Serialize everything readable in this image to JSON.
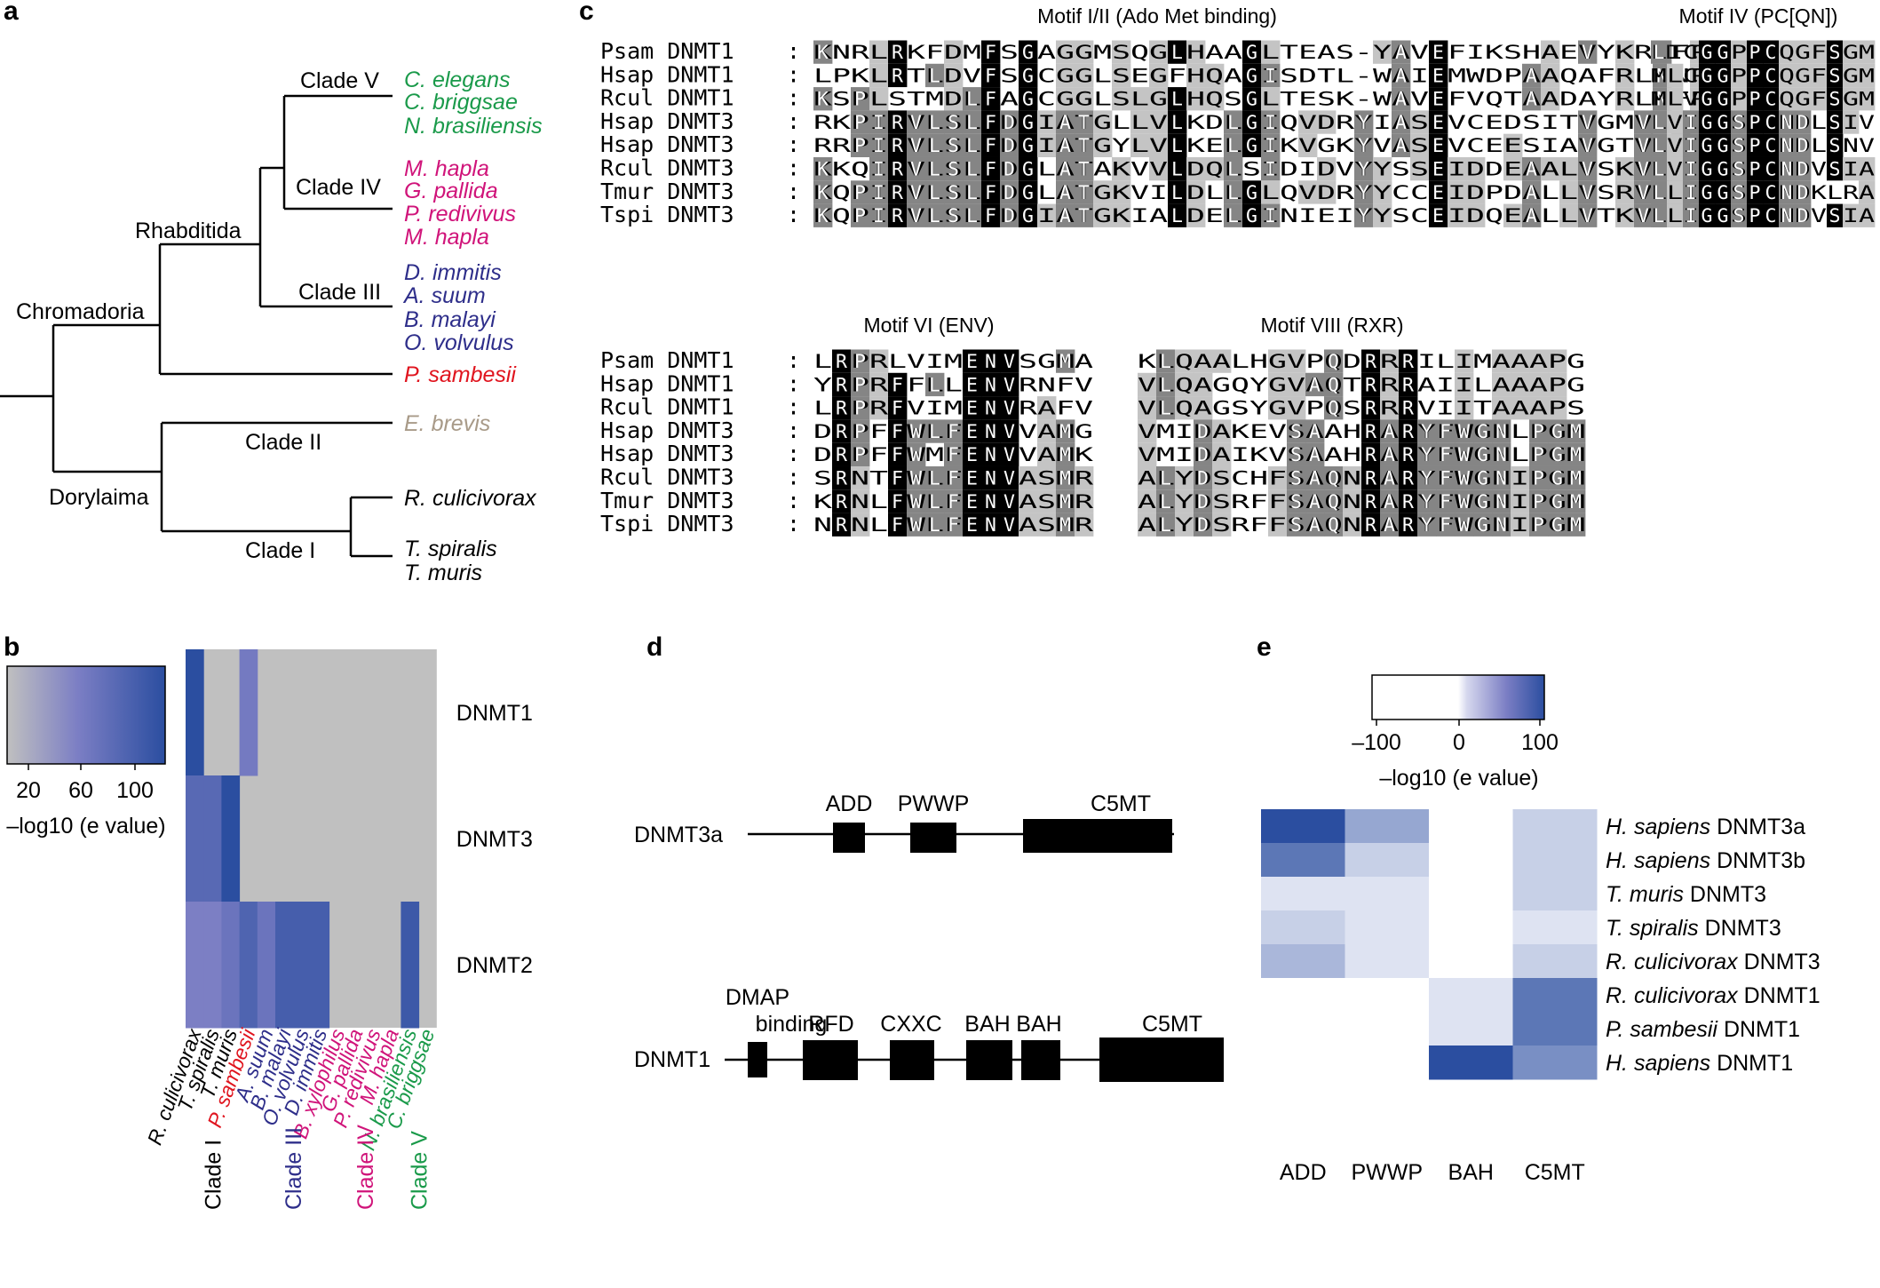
{
  "panels": {
    "a": "a",
    "b": "b",
    "c": "c",
    "d": "d",
    "e": "e"
  },
  "colors": {
    "clade_V": "#1a9a4a",
    "clade_IV": "#d0147a",
    "clade_III": "#2e2e8a",
    "sambesii": "#e0141e",
    "brevis": "#a89a88",
    "clade_I": "#000000",
    "black": "#000000",
    "dark_grey": "#858585",
    "light_grey": "#c4c4c4",
    "grey_bg": "#c0c0c0",
    "heat_high": "#2b4ea0",
    "heat_mid": "#7b7ec4",
    "heat_low": "#d6d8ee"
  },
  "tree": {
    "nodes": {
      "chromadoria": "Chromadoria",
      "dorylaima": "Dorylaima",
      "rhabditida": "Rhabditida",
      "clade_V": "Clade V",
      "clade_IV": "Clade IV",
      "clade_III": "Clade III",
      "clade_II": "Clade II",
      "clade_I": "Clade I"
    },
    "leaves": [
      {
        "name": "C. elegans",
        "group": "clade_V"
      },
      {
        "name": "C. briggsae",
        "group": "clade_V"
      },
      {
        "name": "N. brasiliensis",
        "group": "clade_V"
      },
      {
        "name": "M. hapla",
        "group": "clade_IV"
      },
      {
        "name": "G. pallida",
        "group": "clade_IV"
      },
      {
        "name": "P. redivivus",
        "group": "clade_IV"
      },
      {
        "name": "M. hapla",
        "group": "clade_IV"
      },
      {
        "name": "D. immitis",
        "group": "clade_III"
      },
      {
        "name": "A. suum",
        "group": "clade_III"
      },
      {
        "name": "B. malayi",
        "group": "clade_III"
      },
      {
        "name": "O. volvulus",
        "group": "clade_III"
      },
      {
        "name": "P. sambesii",
        "group": "sambesii"
      },
      {
        "name": "E. brevis",
        "group": "brevis"
      },
      {
        "name": "R. culicivorax",
        "group": "clade_I"
      },
      {
        "name": "T. spiralis",
        "group": "clade_I"
      },
      {
        "name": "T. muris",
        "group": "clade_I"
      }
    ]
  },
  "chart_data": [
    {
      "type": "heatmap",
      "id": "panel_b",
      "rows": [
        "DNMT1",
        "DNMT3",
        "DNMT2"
      ],
      "columns": [
        "R. culicivorax",
        "T. spiralis",
        "T. muris",
        "P. sambesii",
        "A. suum",
        "B. malayi",
        "O. volvulus",
        "D. immitis",
        "B. xylophilus",
        "G. pallida",
        "P. redivivus",
        "M. hapla",
        "N. brasiliensis",
        "C. briggsae"
      ],
      "column_groups": [
        "clade_I",
        "clade_I",
        "clade_I",
        "sambesii",
        "clade_III",
        "clade_III",
        "clade_III",
        "clade_III",
        "clade_IV",
        "clade_IV",
        "clade_IV",
        "clade_IV",
        "clade_V",
        "clade_V"
      ],
      "clade_labels": [
        {
          "label": "Clade I",
          "group": "clade_I",
          "column": 1
        },
        {
          "label": "Clade III",
          "group": "clade_III",
          "column": 5.5
        },
        {
          "label": "Clade IV",
          "group": "clade_IV",
          "column": 9.5
        },
        {
          "label": "Clade V",
          "group": "clade_V",
          "column": 12.5
        }
      ],
      "values": [
        [
          110,
          0,
          0,
          70,
          0,
          0,
          0,
          0,
          0,
          0,
          0,
          0,
          0,
          0
        ],
        [
          85,
          85,
          110,
          0,
          0,
          0,
          0,
          0,
          0,
          0,
          0,
          0,
          0,
          0
        ],
        [
          65,
          65,
          75,
          90,
          75,
          95,
          95,
          95,
          0,
          0,
          0,
          0,
          100,
          0
        ]
      ],
      "scale_ticks": [
        "20",
        "60",
        "100"
      ],
      "scale_label": "–log10 (e value)"
    },
    {
      "type": "heatmap",
      "id": "panel_e",
      "rows": [
        "H. sapiens DNMT3a",
        "H. sapiens DNMT3b",
        "T. muris DNMT3",
        "T. spiralis DNMT3",
        "R. culicivorax DNMT3",
        "R. culicivorax DNMT1",
        "P. sambesii DNMT1",
        "H. sapiens DNMT1"
      ],
      "columns": [
        "ADD",
        "PWWP",
        "BAH",
        "C5MT"
      ],
      "values": [
        [
          100,
          45,
          null,
          20
        ],
        [
          75,
          20,
          null,
          20
        ],
        [
          8,
          8,
          null,
          20
        ],
        [
          20,
          8,
          null,
          8
        ],
        [
          35,
          8,
          null,
          20
        ],
        [
          null,
          null,
          8,
          75
        ],
        [
          null,
          null,
          8,
          75
        ],
        [
          null,
          null,
          100,
          60
        ]
      ],
      "scale_ticks": [
        "–100",
        "0",
        "100"
      ],
      "scale_label": "–log10 (e value)"
    }
  ],
  "alignments": {
    "motif_I_II": {
      "title": "Motif I/II (Ado Met binding)",
      "names": [
        "Psam DNMT1",
        "Hsap DNMT1",
        "Rcul DNMT1",
        "Hsap DNMT3",
        "Hsap DNMT3",
        "Rcul DNMT3",
        "Tmur DNMT3",
        "Tspi DNMT3"
      ],
      "sequences": [
        "KNRLRKFDMFSGAGGMSQGLHAAGLTEAS-YAVEFIKSHAEVYKRNFP",
        "LPKLRTLDVFSGCGGLSEGFHQAGISDTL-WAIEMWDPAAQAFRLNNP",
        "KSPLSTMDLFAGCGGLSLGLHQSGLTESK-WAVEFVQTAADAYRLNFP",
        "RKPIRVLSLFDGIATGLLVLKDLGIQVDRYIASEVCEDSITVGMVRHQ",
        "RRPIRVLSLFDGIATGYLVLKELGIKVGKYVASEVCEESIAVGTVKHE",
        "KKQIRVLSLFDGLATAKVVLDQLSIDIDVYYSSEIDDEAALVSKVNHA",
        "KQPIRVLSLFDGLATGKVILDLLGLQVDRYYCCEIDPDALLVSRVNHP",
        "KQPIRVLSLFDGIATGKIALDELGINIEIYYSCEIDQEALLVTKVNHE"
      ]
    },
    "motif_IV": {
      "title": "Motif IV (PC[QN])",
      "sequences": [
        "LICGGPPCQGFSGM",
        "MLCGGPPCQGFSGM",
        "MLVGGPPCQGFSGM",
        "LVIGGSPCNDLSIV",
        "LVIGGSPCNDLSNV",
        "LVIGGSPCNDVSIA",
        "LLIGGSPCNDKLRA",
        "LLIGGSPCNDVSIA"
      ]
    },
    "motif_VI": {
      "title": "Motif VI (ENV)",
      "names": [
        "Psam DNMT1",
        "Hsap DNMT1",
        "Rcul DNMT1",
        "Hsap DNMT3",
        "Hsap DNMT3",
        "Rcul DNMT3",
        "Tmur DNMT3",
        "Tspi DNMT3"
      ],
      "sequences": [
        "LRPRLVIMENVSGMA",
        "YRPRFFLLENVRNFV",
        "LRPRFVIMENVRAFV",
        "DRPFFWLFENVVAMG",
        "DRPFFWMFENVVAMK",
        "SRNTFWLFENVASMR",
        "KRNLFWLFENVASMR",
        "NRNLFWLFENVASMR"
      ]
    },
    "motif_VIII": {
      "title": "Motif VIII (RXR)",
      "sequences": [
        "KLQAALHGVPQDRRRILIMAAAPG",
        "VLQAGQYGVAQTRRRAIILAAAPG",
        "VLQAGSYGVPQSRRRVIITAAAPS",
        "VMIDAKEVSAAHRARYFWGNLPGM",
        "VMIDAIKVSAAHRARYFWGNLPGM",
        "ALYDSCHFSAQNRARYFWGNIPGM",
        "ALYDSRFFSAQNRARYFWGNIPGM",
        "ALYDSRFFSAQNRARYFWGNIPGM"
      ]
    }
  },
  "domains": {
    "dnmt3a": {
      "label": "DNMT3a",
      "boxes": [
        "ADD",
        "PWWP",
        "C5MT"
      ]
    },
    "dnmt1": {
      "label": "DNMT1",
      "boxes": [
        "DMAP binding",
        "RFD",
        "CXXC",
        "BAH",
        "BAH",
        "C5MT"
      ]
    }
  }
}
